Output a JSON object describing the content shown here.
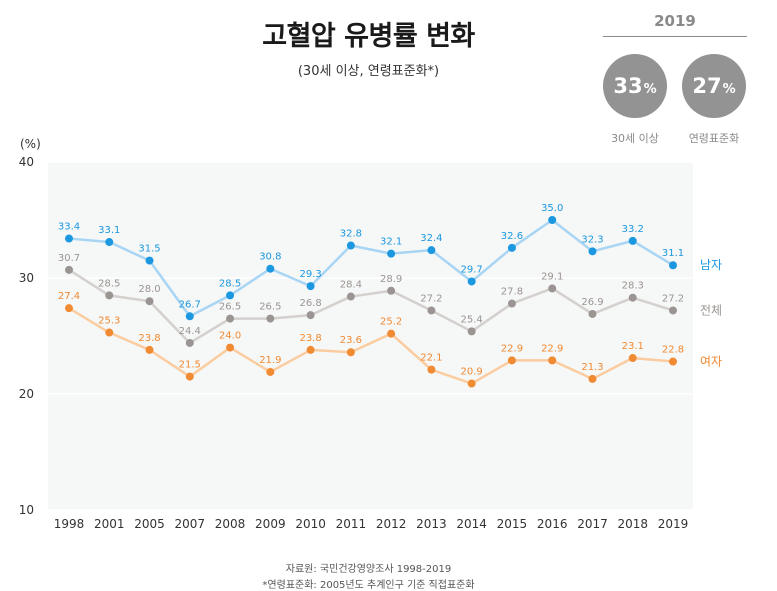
{
  "header": {
    "title": "고혈압 유병률 변화",
    "subtitle": "(30세 이상, 연령표준화*)"
  },
  "summary": {
    "year": "2019",
    "left": {
      "value": "33",
      "unit": "%",
      "label": "30세 이상"
    },
    "right": {
      "value": "27",
      "unit": "%",
      "label": "연령표준화"
    }
  },
  "footer": {
    "source": "자료원: 국민건강영양조사 1998-2019",
    "note": "*연령표준화: 2005년도 추계인구 기준 직접표준화"
  },
  "colors": {
    "male": "#1b98e0",
    "male_line": "#a9d5f4",
    "total": "#9a9592",
    "total_line": "#d3d0ce",
    "female": "#f08a33",
    "female_line": "#fbcc9f",
    "plot_bg": "#f6f7f7"
  },
  "chart_data": {
    "type": "line",
    "title": "고혈압 유병률 변화",
    "subtitle": "(30세 이상, 연령표준화*)",
    "y_unit_label": "(%)",
    "categories": [
      "1998",
      "2001",
      "2005",
      "2007",
      "2008",
      "2009",
      "2010",
      "2011",
      "2012",
      "2013",
      "2014",
      "2015",
      "2016",
      "2017",
      "2018",
      "2019"
    ],
    "ylim": [
      10,
      40
    ],
    "yticks": [
      10,
      20,
      30,
      40
    ],
    "grid": true,
    "series": [
      {
        "name": "남자",
        "key": "male",
        "values": [
          33.4,
          33.1,
          31.5,
          26.7,
          28.5,
          30.8,
          29.3,
          32.8,
          32.1,
          32.4,
          29.7,
          32.6,
          35.0,
          32.3,
          33.2,
          31.1
        ]
      },
      {
        "name": "전체",
        "key": "total",
        "values": [
          30.7,
          28.5,
          28.0,
          24.4,
          26.5,
          26.5,
          26.8,
          28.4,
          28.9,
          27.2,
          25.4,
          27.8,
          29.1,
          26.9,
          28.3,
          27.2
        ]
      },
      {
        "name": "여자",
        "key": "female",
        "values": [
          27.4,
          25.3,
          23.8,
          21.5,
          24.0,
          21.9,
          23.8,
          23.6,
          25.2,
          22.1,
          20.9,
          22.9,
          22.9,
          21.3,
          23.1,
          22.8
        ]
      }
    ]
  }
}
